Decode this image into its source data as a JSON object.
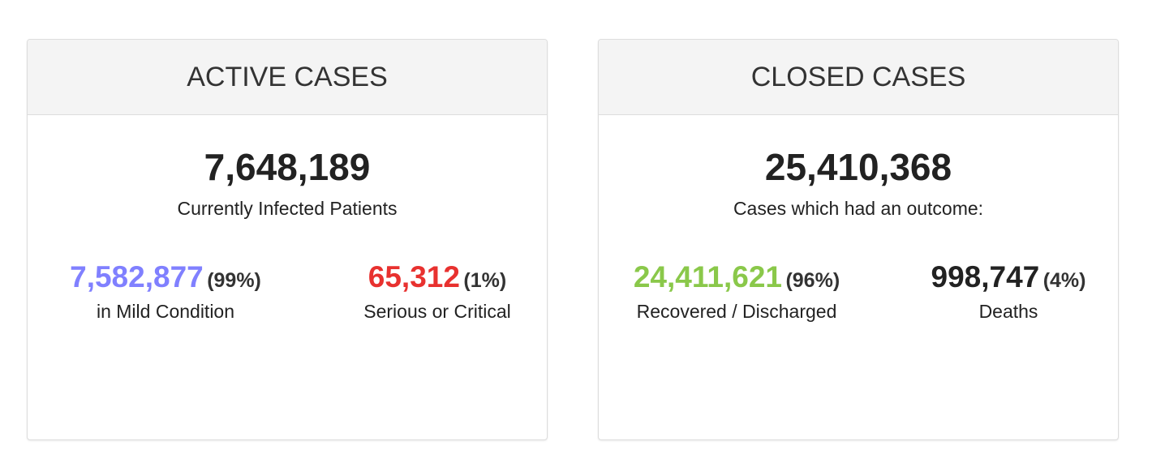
{
  "panels": [
    {
      "title": "ACTIVE CASES",
      "total": "7,648,189",
      "total_label": "Currently Infected Patients",
      "breakdown": [
        {
          "value": "7,582,877",
          "percent": "(99%)",
          "label": "in Mild Condition",
          "color": "#8080ff"
        },
        {
          "value": "65,312",
          "percent": "(1%)",
          "label": "Serious or Critical",
          "color": "#e8312f"
        }
      ]
    },
    {
      "title": "CLOSED CASES",
      "total": "25,410,368",
      "total_label": "Cases which had an outcome:",
      "breakdown": [
        {
          "value": "24,411,621",
          "percent": "(96%)",
          "label": "Recovered / Discharged",
          "color": "#8ac84a"
        },
        {
          "value": "998,747",
          "percent": "(4%)",
          "label": "Deaths",
          "color": "#222222"
        }
      ]
    }
  ]
}
